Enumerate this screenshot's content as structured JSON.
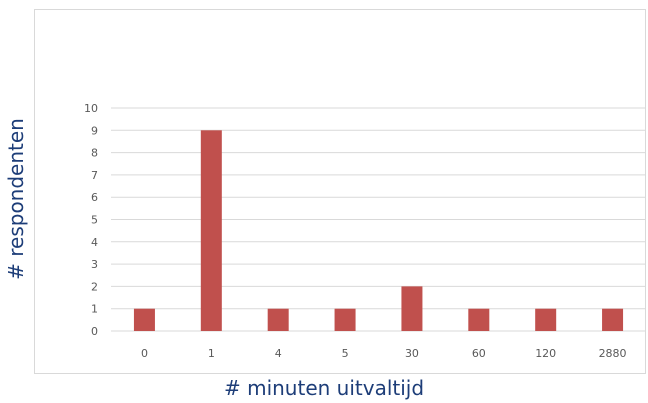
{
  "chart_data": {
    "type": "bar",
    "title": "",
    "xlabel": "# minuten uitvaltijd",
    "ylabel": "# respondenten",
    "categories": [
      "0",
      "1",
      "4",
      "5",
      "30",
      "60",
      "120",
      "2880"
    ],
    "values": [
      1,
      9,
      1,
      1,
      2,
      1,
      1,
      1
    ],
    "ylim": [
      0,
      10
    ],
    "yticks": [
      0,
      1,
      2,
      3,
      4,
      5,
      6,
      7,
      8,
      9,
      10
    ],
    "grid": true,
    "bar_color": "#c0504d",
    "grid_color": "#d9d9d9"
  }
}
